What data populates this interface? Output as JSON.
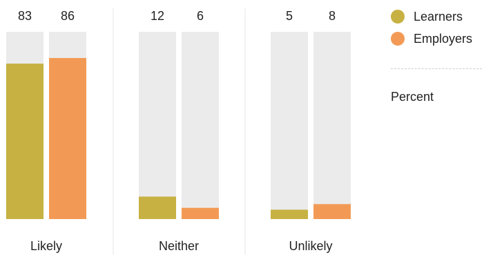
{
  "chart_data": {
    "type": "bar",
    "categories": [
      "Likely",
      "Neither",
      "Unlikely"
    ],
    "series": [
      {
        "name": "Learners",
        "values": [
          83,
          12,
          5
        ],
        "color": "#c7b142"
      },
      {
        "name": "Employers",
        "values": [
          86,
          6,
          8
        ],
        "color": "#f29a55"
      }
    ],
    "ylim": [
      0,
      100
    ],
    "track_color": "#ebebeb",
    "divider_color": "#e4e4e4",
    "legend_position": "top-right",
    "unit_label": "Percent"
  }
}
